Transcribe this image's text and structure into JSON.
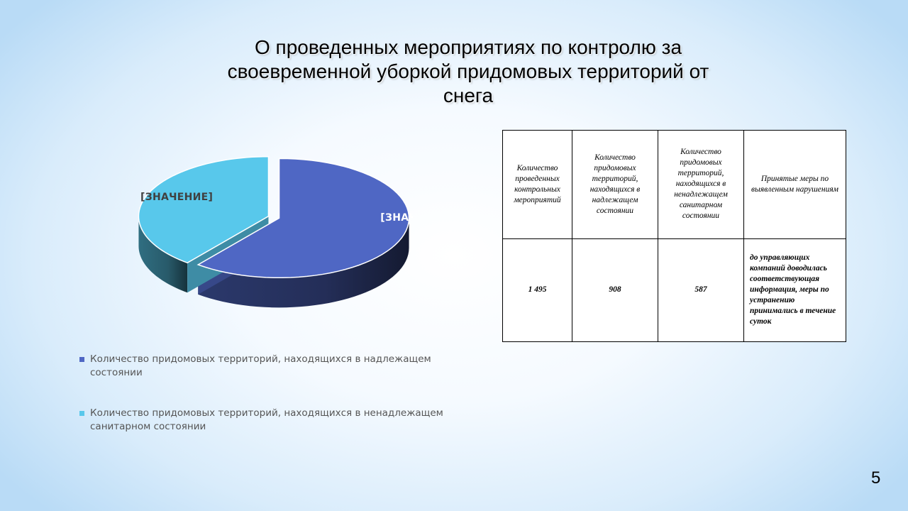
{
  "slide": {
    "title_lines": [
      "О проведенных мероприятиях по контролю за",
      "своевременной уборкой придомовых территорий от",
      "снега"
    ],
    "page_number": "5"
  },
  "chart_data": {
    "type": "pie",
    "style": "3d-exploded",
    "series": [
      {
        "name": "Количество придомовых территорий, находящихся в надлежащем состоянии",
        "value": 908,
        "color": "#4F67C4",
        "data_label": "[ЗНАЧЕНИ"
      },
      {
        "name": "Количество придомовых территорий, находящихся в ненадлежащем санитарном состоянии",
        "value": 587,
        "color": "#58C8EB",
        "data_label": "[ЗНАЧЕНИЕ]"
      }
    ],
    "legend_position": "bottom"
  },
  "legend": [
    {
      "text": "Количество придомовых территорий, находящихся в надлежащем состоянии",
      "color": "#4F67C4"
    },
    {
      "text": "Количество придомовых территорий, находящихся в ненадлежащем санитарном состоянии",
      "color": "#58C8EB"
    }
  ],
  "table": {
    "headers": [
      "Количество проведенных контрольных мероприятий",
      "Количество придомовых территорий, находящихся в надлежащем состоянии",
      "Количество придомовых территорий, находящихся в ненадлежащем санитарном состоянии",
      "Принятые меры по выявленным нарушениям"
    ],
    "values": [
      "1 495",
      "908",
      "587",
      "до управляющих компаний доводилась соответствующая информация, меры по устранению принимались в течение суток"
    ]
  }
}
